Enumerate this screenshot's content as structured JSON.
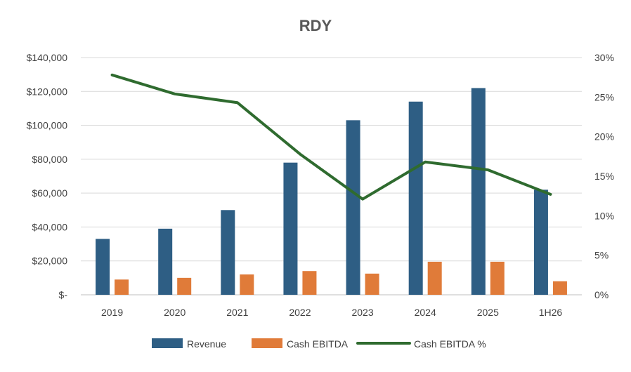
{
  "chart_data": {
    "type": "bar",
    "title": "RDY",
    "categories": [
      "2019",
      "2020",
      "2021",
      "2022",
      "2023",
      "2024",
      "2025",
      "1H26"
    ],
    "series": [
      {
        "name": "Revenue",
        "type": "bar",
        "axis": "left",
        "color": "#2E5E84",
        "values": [
          33000,
          39000,
          50000,
          78000,
          103000,
          114000,
          122000,
          62000
        ]
      },
      {
        "name": "Cash EBITDA",
        "type": "bar",
        "axis": "left",
        "color": "#E07B39",
        "values": [
          9000,
          10000,
          12000,
          14000,
          12500,
          19500,
          19500,
          8000
        ]
      },
      {
        "name": "Cash EBITDA %",
        "type": "line",
        "axis": "right",
        "color": "#2F6B2F",
        "values": [
          0.278,
          0.254,
          0.243,
          0.178,
          0.121,
          0.168,
          0.158,
          0.127
        ]
      }
    ],
    "y_left": {
      "lim": [
        0,
        140000
      ],
      "ticks": [
        0,
        20000,
        40000,
        60000,
        80000,
        100000,
        120000,
        140000
      ],
      "tick_labels": [
        "$-",
        "$20,000",
        "$40,000",
        "$60,000",
        "$80,000",
        "$100,000",
        "$120,000",
        "$140,000"
      ]
    },
    "y_right": {
      "lim": [
        0,
        0.3
      ],
      "ticks": [
        0,
        0.05,
        0.1,
        0.15,
        0.2,
        0.25,
        0.3
      ],
      "tick_labels": [
        "0%",
        "5%",
        "10%",
        "15%",
        "20%",
        "25%",
        "30%"
      ]
    },
    "grid": true,
    "gridline_color": "#D9D9D9",
    "legend_position": "bottom"
  }
}
